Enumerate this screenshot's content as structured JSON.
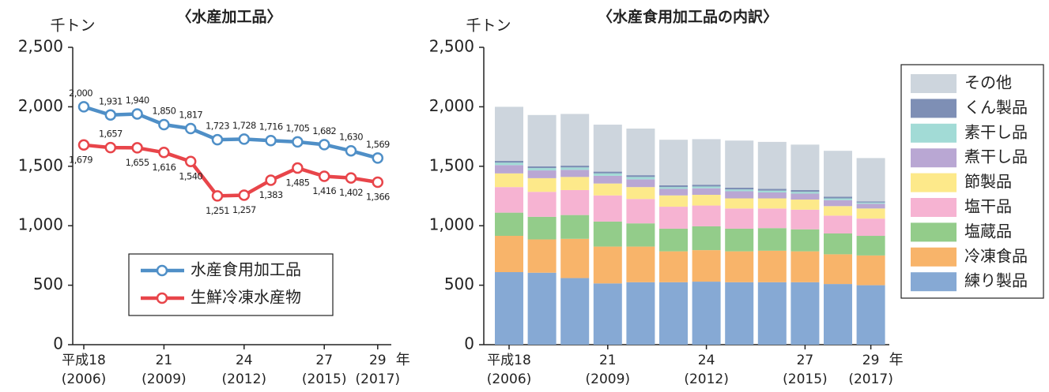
{
  "chart_data": [
    {
      "type": "line",
      "title": "〈水産加工品〉",
      "y_label": "千トン",
      "x_label": "年",
      "categories": [
        "平成18",
        null,
        null,
        "21",
        null,
        null,
        "24",
        null,
        null,
        "27",
        null,
        "29"
      ],
      "category_years": [
        "(2006)",
        null,
        null,
        "(2009)",
        null,
        null,
        "(2012)",
        null,
        null,
        "(2015)",
        null,
        "(2017)"
      ],
      "ylim": [
        0,
        2500
      ],
      "yticks": [
        0,
        500,
        {
          "value": 1000,
          "label": "1,000"
        },
        {
          "value": 1500,
          "label": "1,500"
        },
        {
          "value": 2000,
          "label": "2,000"
        },
        {
          "value": 2500,
          "label": "2,500"
        }
      ],
      "legend": "lower center",
      "series": [
        {
          "name": "水産食用加工品",
          "color": "#4f8fc7",
          "values": [
            2000,
            1931,
            1940,
            1850,
            1817,
            1723,
            1728,
            1716,
            1705,
            1682,
            1630,
            1569
          ],
          "value_labels": [
            "2,000",
            "1,931",
            "1,940",
            "1,850",
            "1,817",
            "1,723",
            "1,728",
            "1,716",
            "1,705",
            "1,682",
            "1,630",
            "1,569"
          ]
        },
        {
          "name": "生鮮冷凍水産物",
          "color": "#e8454a",
          "values": [
            1679,
            1657,
            1655,
            1616,
            1540,
            1251,
            1257,
            1383,
            1485,
            1416,
            1402,
            1366
          ],
          "value_labels": [
            "1,679",
            "1,657",
            "1,655",
            "1,616",
            "1,540",
            "1,251",
            "1,257",
            "1,383",
            "1,485",
            "1,416",
            "1,402",
            "1,366"
          ]
        }
      ]
    },
    {
      "type": "bar",
      "stacked": true,
      "title": "〈水産食用加工品の内訳〉",
      "y_label": "千トン",
      "x_label": "年",
      "categories": [
        "平成18",
        null,
        null,
        "21",
        null,
        null,
        "24",
        null,
        null,
        "27",
        null,
        "29"
      ],
      "category_years": [
        "(2006)",
        null,
        null,
        "(2009)",
        null,
        null,
        "(2012)",
        null,
        null,
        "(2015)",
        null,
        "(2017)"
      ],
      "ylim": [
        0,
        2500
      ],
      "yticks": [
        0,
        500,
        {
          "value": 1000,
          "label": "1,000"
        },
        {
          "value": 1500,
          "label": "1,500"
        },
        {
          "value": 2000,
          "label": "2,000"
        },
        {
          "value": 2500,
          "label": "2,500"
        }
      ],
      "legend": "outside right",
      "series": [
        {
          "name": "練り製品",
          "color": "#86a9d4",
          "values": [
            610,
            605,
            560,
            515,
            525,
            525,
            530,
            525,
            525,
            525,
            510,
            500
          ]
        },
        {
          "name": "冷凍食品",
          "color": "#f8b46a",
          "values": [
            305,
            280,
            330,
            310,
            300,
            260,
            265,
            260,
            265,
            260,
            250,
            250
          ]
        },
        {
          "name": "塩蔵品",
          "color": "#93cc8a",
          "values": [
            195,
            190,
            200,
            210,
            195,
            190,
            200,
            190,
            190,
            185,
            175,
            165
          ]
        },
        {
          "name": "塩干品",
          "color": "#f6b3d2",
          "values": [
            215,
            210,
            210,
            220,
            205,
            185,
            175,
            170,
            165,
            165,
            150,
            145
          ]
        },
        {
          "name": "節製品",
          "color": "#fde98a",
          "values": [
            115,
            115,
            110,
            100,
            100,
            95,
            90,
            85,
            85,
            85,
            80,
            85
          ]
        },
        {
          "name": "煮干し品",
          "color": "#b9a7d3",
          "values": [
            70,
            65,
            60,
            65,
            65,
            55,
            55,
            60,
            50,
            50,
            50,
            40
          ]
        },
        {
          "name": "素干し品",
          "color": "#a2dbd6",
          "values": [
            20,
            20,
            20,
            20,
            20,
            15,
            15,
            15,
            15,
            15,
            15,
            10
          ]
        },
        {
          "name": "くん製品",
          "color": "#7e8fb5",
          "values": [
            15,
            15,
            15,
            15,
            15,
            15,
            15,
            15,
            15,
            15,
            15,
            10
          ]
        },
        {
          "name": "その他",
          "color": "#cdd5dd",
          "values": [
            455,
            431,
            435,
            395,
            392,
            383,
            383,
            396,
            395,
            382,
            385,
            364
          ]
        }
      ]
    }
  ]
}
